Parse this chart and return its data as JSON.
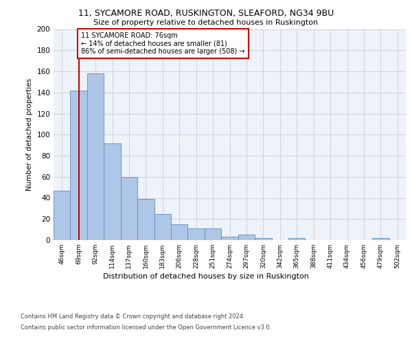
{
  "title1": "11, SYCAMORE ROAD, RUSKINGTON, SLEAFORD, NG34 9BU",
  "title2": "Size of property relative to detached houses in Ruskington",
  "xlabel": "Distribution of detached houses by size in Ruskington",
  "ylabel": "Number of detached properties",
  "bar_labels": [
    "46sqm",
    "69sqm",
    "92sqm",
    "114sqm",
    "137sqm",
    "160sqm",
    "183sqm",
    "206sqm",
    "228sqm",
    "251sqm",
    "274sqm",
    "297sqm",
    "320sqm",
    "342sqm",
    "365sqm",
    "388sqm",
    "411sqm",
    "434sqm",
    "456sqm",
    "479sqm",
    "502sqm"
  ],
  "bar_values": [
    47,
    142,
    158,
    92,
    60,
    39,
    25,
    15,
    11,
    11,
    3,
    5,
    2,
    0,
    2,
    0,
    0,
    0,
    0,
    2,
    0
  ],
  "bar_color": "#aec6e8",
  "bar_edgecolor": "#5a8fc0",
  "vline_x": 1,
  "vline_color": "#cc0000",
  "annotation_text": "11 SYCAMORE ROAD: 76sqm\n← 14% of detached houses are smaller (81)\n86% of semi-detached houses are larger (508) →",
  "annotation_box_color": "#ffffff",
  "annotation_box_edgecolor": "#cc0000",
  "ylim": [
    0,
    200
  ],
  "yticks": [
    0,
    20,
    40,
    60,
    80,
    100,
    120,
    140,
    160,
    180,
    200
  ],
  "grid_color": "#cccccc",
  "bg_color": "#eef2f9",
  "footer1": "Contains HM Land Registry data © Crown copyright and database right 2024.",
  "footer2": "Contains public sector information licensed under the Open Government Licence v3.0."
}
